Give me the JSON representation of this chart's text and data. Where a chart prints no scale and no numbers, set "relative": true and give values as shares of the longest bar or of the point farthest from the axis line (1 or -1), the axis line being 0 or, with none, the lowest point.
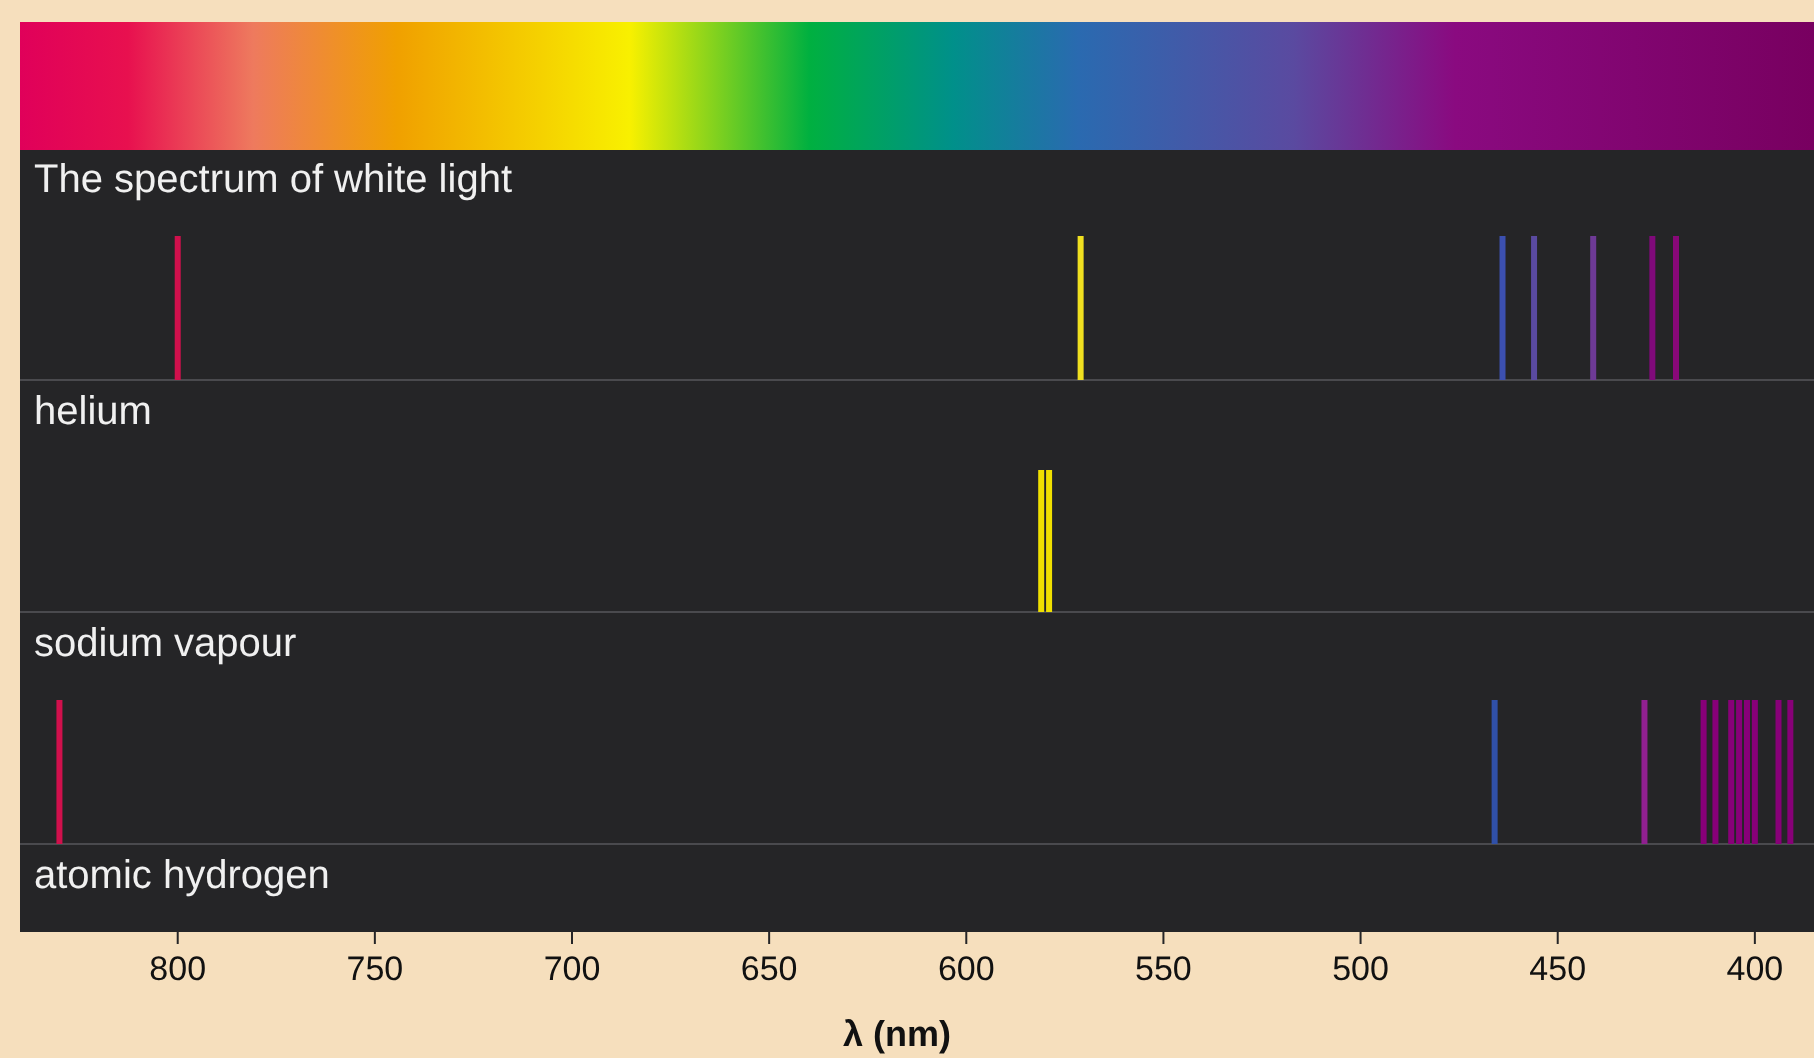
{
  "chart_data": [
    {
      "type": "other",
      "title": "The spectrum of white light"
    },
    {
      "type": "bar",
      "title": "helium",
      "relative": true,
      "xlim": [
        840,
        385
      ],
      "x": [
        800,
        571,
        464,
        456,
        441,
        426,
        420
      ],
      "values": [
        1,
        1,
        1,
        1,
        1,
        1,
        1
      ],
      "colors": [
        "#d0104c",
        "#f0e020",
        "#3c50b0",
        "#5a4aa0",
        "#6e3a96",
        "#800a7a",
        "#880878"
      ]
    },
    {
      "type": "bar",
      "title": "sodium vapour",
      "relative": true,
      "xlim": [
        840,
        385
      ],
      "x": [
        581,
        579
      ],
      "values": [
        1,
        1
      ],
      "colors": [
        "#f0e000",
        "#f0e000"
      ]
    },
    {
      "type": "bar",
      "title": "atomic hydrogen",
      "relative": true,
      "xlim": [
        840,
        385
      ],
      "xticks": [
        800,
        750,
        700,
        650,
        600,
        550,
        500,
        450,
        400
      ],
      "xlabel": "λ (nm)",
      "x": [
        830,
        466,
        428,
        413,
        410,
        406,
        404,
        402,
        400,
        394,
        391
      ],
      "values": [
        1,
        1,
        1,
        1,
        1,
        1,
        1,
        1,
        1,
        1,
        1
      ],
      "colors": [
        "#d0104c",
        "#3050a8",
        "#902090",
        "#880078",
        "#880078",
        "#880078",
        "#880078",
        "#880078",
        "#880078",
        "#880078",
        "#880078"
      ]
    }
  ]
}
